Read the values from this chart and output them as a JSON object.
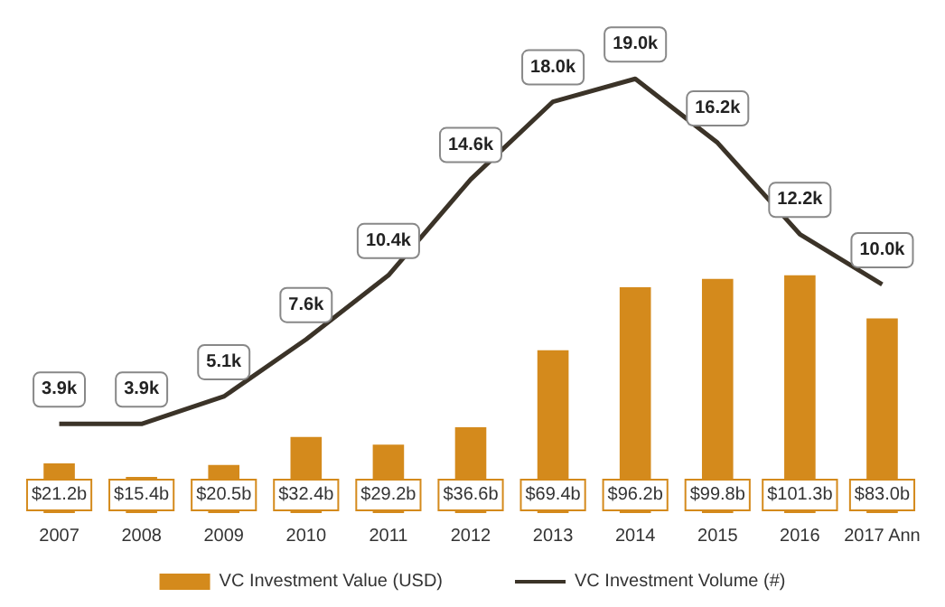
{
  "chart_data": {
    "type": "bar",
    "categories": [
      "2007",
      "2008",
      "2009",
      "2010",
      "2011",
      "2012",
      "2013",
      "2014",
      "2015",
      "2016",
      "2017 Ann"
    ],
    "series": [
      {
        "name": "VC Investment Value (USD)",
        "color": "#d48a1c",
        "values": [
          21.2,
          15.4,
          20.5,
          32.4,
          29.2,
          36.6,
          69.4,
          96.2,
          99.8,
          101.3,
          83.0
        ],
        "value_labels": [
          "$21.2b",
          "$15.4b",
          "$20.5b",
          "$32.4b",
          "$29.2b",
          "$36.6b",
          "$69.4b",
          "$96.2b",
          "$99.8b",
          "$101.3b",
          "$83.0b"
        ]
      },
      {
        "name": "VC Investment Volume (#)",
        "type": "line",
        "axis": "y2",
        "color": "#3b3328",
        "values": [
          3.9,
          3.9,
          5.1,
          7.6,
          10.4,
          14.6,
          18.0,
          19.0,
          16.2,
          12.2,
          10.0
        ],
        "value_labels": [
          "3.9k",
          "3.9k",
          "5.1k",
          "7.6k",
          "10.4k",
          "14.6k",
          "18.0k",
          "19.0k",
          "16.2k",
          "12.2k",
          "10.0k"
        ]
      }
    ],
    "legend": "bottom",
    "grid": false,
    "marker": "none",
    "line_style": "solid"
  }
}
